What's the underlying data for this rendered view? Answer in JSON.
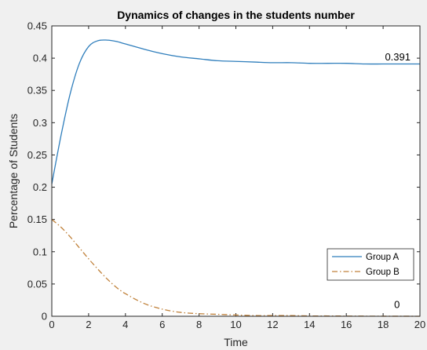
{
  "chart_data": {
    "type": "line",
    "title": "Dynamics of changes in the students number",
    "xlabel": "Time",
    "ylabel": "Percentage of Students",
    "xlim": [
      0,
      20
    ],
    "ylim": [
      0,
      0.45
    ],
    "grid": false,
    "legend_position": "bottom-right",
    "x_ticks": [
      0,
      2,
      4,
      6,
      8,
      10,
      12,
      14,
      16,
      18,
      20
    ],
    "y_ticks": [
      0,
      0.05,
      0.1,
      0.15,
      0.2,
      0.25,
      0.3,
      0.35,
      0.4,
      0.45
    ],
    "x_tick_labels": [
      "0",
      "2",
      "4",
      "6",
      "8",
      "10",
      "12",
      "14",
      "16",
      "18",
      "20"
    ],
    "y_tick_labels": [
      "0",
      "0.05",
      "0.1",
      "0.15",
      "0.2",
      "0.25",
      "0.3",
      "0.35",
      "0.4",
      "0.45"
    ],
    "x": [
      0,
      0.5,
      1,
      1.5,
      2,
      2.5,
      3,
      3.5,
      4,
      5,
      6,
      7,
      8,
      9,
      10,
      11,
      12,
      13,
      14,
      15,
      16,
      17,
      18,
      19,
      20
    ],
    "series": [
      {
        "name": "Group A",
        "color": "#2f7ebc",
        "line_style": "solid",
        "values": [
          0.205,
          0.28,
          0.345,
          0.392,
          0.418,
          0.427,
          0.428,
          0.426,
          0.422,
          0.414,
          0.407,
          0.402,
          0.399,
          0.396,
          0.395,
          0.394,
          0.393,
          0.393,
          0.392,
          0.392,
          0.392,
          0.391,
          0.391,
          0.391,
          0.391
        ]
      },
      {
        "name": "Group B",
        "color": "#c0813a",
        "line_style": "dash-dot",
        "values": [
          0.15,
          0.138,
          0.123,
          0.106,
          0.089,
          0.073,
          0.058,
          0.045,
          0.035,
          0.02,
          0.011,
          0.006,
          0.004,
          0.003,
          0.002,
          0.001,
          0.001,
          0.001,
          0.0005,
          0.0005,
          0.0003,
          0.0002,
          0.0001,
          0.0001,
          0.0
        ]
      }
    ],
    "annotations": [
      {
        "text": "0.391",
        "x": 18.1,
        "y": 0.393
      },
      {
        "text": "0",
        "x": 18.6,
        "y": 0.009
      }
    ]
  }
}
